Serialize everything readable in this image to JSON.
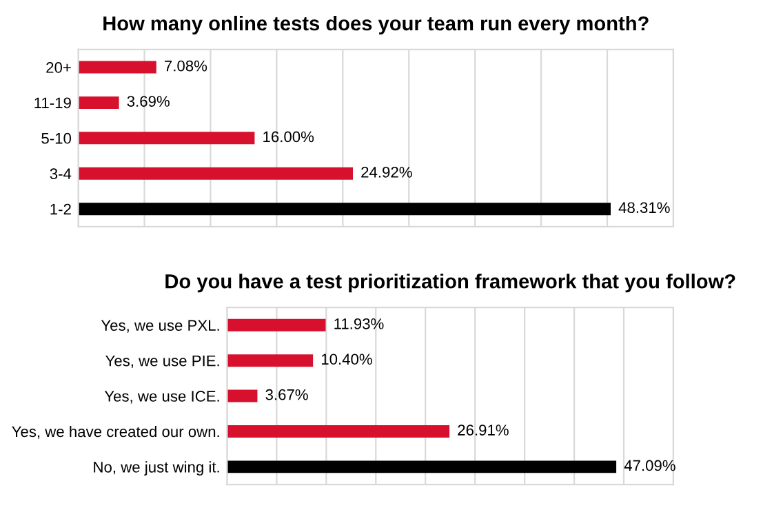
{
  "chart_data": [
    {
      "type": "bar",
      "orientation": "horizontal",
      "title": "How many online tests does your team run every month?",
      "categories": [
        "20+",
        "11-19",
        "5-10",
        "3-4",
        "1-2"
      ],
      "values": [
        7.08,
        3.69,
        16.0,
        24.92,
        48.31
      ],
      "value_labels": [
        "7.08%",
        "3.69%",
        "16.00%",
        "24.92%",
        "48.31%"
      ],
      "colors": [
        "#d7102e",
        "#d7102e",
        "#d7102e",
        "#d7102e",
        "#000000"
      ],
      "xlim": [
        0,
        54
      ],
      "xticks": [
        {
          "value": 0,
          "label": null
        },
        {
          "value": 6,
          "label": null
        },
        {
          "value": 12,
          "label": null
        },
        {
          "value": 18,
          "label": null
        },
        {
          "value": 24,
          "label": null
        },
        {
          "value": 30,
          "label": null
        },
        {
          "value": 36,
          "label": null
        },
        {
          "value": 42,
          "label": null
        },
        {
          "value": 48,
          "label": null
        },
        {
          "value": 54,
          "label": null
        }
      ],
      "grid": "x",
      "legend": false
    },
    {
      "type": "bar",
      "orientation": "horizontal",
      "title": "Do you have a test prioritization framework that you follow?",
      "categories": [
        "Yes, we use PXL.",
        "Yes, we use PIE.",
        "Yes, we use ICE.",
        "Yes, we have created our own.",
        "No, we just wing it."
      ],
      "values": [
        11.93,
        10.4,
        3.67,
        26.91,
        47.09
      ],
      "value_labels": [
        "11.93%",
        "10.40%",
        "3.67%",
        "26.91%",
        "47.09%"
      ],
      "colors": [
        "#d7102e",
        "#d7102e",
        "#d7102e",
        "#d7102e",
        "#000000"
      ],
      "xlim": [
        0,
        54
      ],
      "xticks": [
        {
          "value": 0,
          "label": null
        },
        {
          "value": 6,
          "label": null
        },
        {
          "value": 12,
          "label": null
        },
        {
          "value": 18,
          "label": null
        },
        {
          "value": 24,
          "label": null
        },
        {
          "value": 30,
          "label": null
        },
        {
          "value": 36,
          "label": null
        },
        {
          "value": 42,
          "label": null
        },
        {
          "value": 48,
          "label": null
        },
        {
          "value": 54,
          "label": null
        }
      ],
      "grid": "x",
      "legend": false
    }
  ]
}
